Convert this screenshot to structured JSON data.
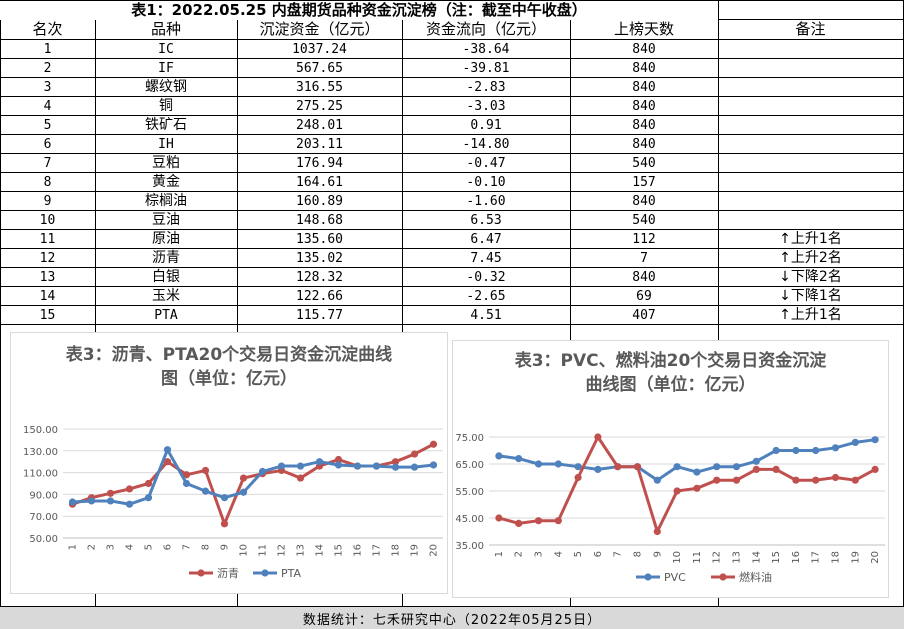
{
  "table": {
    "title": "表1：2022.05.25 内盘期货品种资金沉淀榜（注：截至中午收盘）",
    "headers": [
      "名次",
      "品种",
      "沉淀资金（亿元）",
      "资金流向（亿元）",
      "上榜天数",
      "备注"
    ],
    "rows": [
      {
        "rank": "1",
        "name": "IC",
        "amount": "1037.24",
        "flow": "-38.64",
        "days": "840",
        "note": ""
      },
      {
        "rank": "2",
        "name": "IF",
        "amount": "567.65",
        "flow": "-39.81",
        "days": "840",
        "note": ""
      },
      {
        "rank": "3",
        "name": "螺纹钢",
        "amount": "316.55",
        "flow": "-2.83",
        "days": "840",
        "note": ""
      },
      {
        "rank": "4",
        "name": "铜",
        "amount": "275.25",
        "flow": "-3.03",
        "days": "840",
        "note": ""
      },
      {
        "rank": "5",
        "name": "铁矿石",
        "amount": "248.01",
        "flow": "0.91",
        "days": "840",
        "note": ""
      },
      {
        "rank": "6",
        "name": "IH",
        "amount": "203.11",
        "flow": "-14.80",
        "days": "840",
        "note": ""
      },
      {
        "rank": "7",
        "name": "豆粕",
        "amount": "176.94",
        "flow": "-0.47",
        "days": "540",
        "note": ""
      },
      {
        "rank": "8",
        "name": "黄金",
        "amount": "164.61",
        "flow": "-0.10",
        "days": "157",
        "note": ""
      },
      {
        "rank": "9",
        "name": "棕榈油",
        "amount": "160.89",
        "flow": "-1.60",
        "days": "840",
        "note": ""
      },
      {
        "rank": "10",
        "name": "豆油",
        "amount": "148.68",
        "flow": "6.53",
        "days": "540",
        "note": ""
      },
      {
        "rank": "11",
        "name": "原油",
        "amount": "135.60",
        "flow": "6.47",
        "days": "112",
        "note": "↑上升1名"
      },
      {
        "rank": "12",
        "name": "沥青",
        "amount": "135.02",
        "flow": "7.45",
        "days": "7",
        "note": "↑上升2名"
      },
      {
        "rank": "13",
        "name": "白银",
        "amount": "128.32",
        "flow": "-0.32",
        "days": "840",
        "note": "↓下降2名"
      },
      {
        "rank": "14",
        "name": "玉米",
        "amount": "122.66",
        "flow": "-2.65",
        "days": "69",
        "note": "↓下降1名"
      },
      {
        "rank": "15",
        "name": "PTA",
        "amount": "115.77",
        "flow": "4.51",
        "days": "407",
        "note": "↑上升1名"
      }
    ]
  },
  "footer": "数据统计：七禾研究中心（2022年05月25日）",
  "colors": {
    "red": "#c0504d",
    "blue": "#4f81bd",
    "axis": "#595959",
    "grid": "#d9d9d9",
    "footer_bg": "#d9d9d9"
  },
  "chart_data": [
    {
      "type": "line",
      "title": "表3：沥青、PTA20个交易日资金沉淀曲线图（单位：亿元）",
      "title_lines": [
        "表3：沥青、PTA20个交易日资金沉淀曲线",
        "图（单位：亿元）"
      ],
      "x": [
        "1",
        "2",
        "3",
        "4",
        "5",
        "6",
        "7",
        "8",
        "9",
        "10",
        "11",
        "12",
        "13",
        "14",
        "15",
        "16",
        "17",
        "18",
        "19",
        "20"
      ],
      "yticks": [
        "50.00",
        "70.00",
        "90.00",
        "110.00",
        "130.00",
        "150.00"
      ],
      "ylim": [
        50,
        150
      ],
      "legend_position": "bottom",
      "series": [
        {
          "name": "沥青",
          "color": "#c0504d",
          "values": [
            81,
            87,
            91,
            95,
            100,
            120,
            108,
            112,
            63,
            105,
            109,
            112,
            105,
            116,
            122,
            116,
            116,
            120,
            127,
            136
          ]
        },
        {
          "name": "PTA",
          "color": "#4f81bd",
          "values": [
            83,
            84,
            84,
            81,
            87,
            131,
            100,
            93,
            87,
            92,
            111,
            116,
            116,
            120,
            117,
            116,
            116,
            115,
            115,
            117
          ]
        }
      ]
    },
    {
      "type": "line",
      "title": "表3：PVC、燃料油20个交易日资金沉淀曲线图（单位：亿元）",
      "title_lines": [
        "表3：PVC、燃料油20个交易日资金沉淀",
        "曲线图（单位：亿元）"
      ],
      "x": [
        "1",
        "2",
        "3",
        "4",
        "5",
        "6",
        "7",
        "8",
        "9",
        "10",
        "11",
        "12",
        "13",
        "14",
        "15",
        "16",
        "17",
        "18",
        "19",
        "20"
      ],
      "yticks": [
        "35.00",
        "45.00",
        "55.00",
        "65.00",
        "75.00"
      ],
      "ylim": [
        35,
        75
      ],
      "legend_position": "bottom",
      "series": [
        {
          "name": "PVC",
          "color": "#4f81bd",
          "values": [
            68,
            67,
            65,
            65,
            64,
            63,
            64,
            64,
            59,
            64,
            62,
            64,
            64,
            66,
            70,
            70,
            70,
            71,
            73,
            74
          ]
        },
        {
          "name": "燃料油",
          "color": "#c0504d",
          "values": [
            45,
            43,
            44,
            44,
            60,
            75,
            64,
            64,
            40,
            55,
            56,
            59,
            59,
            63,
            63,
            59,
            59,
            60,
            59,
            63
          ]
        }
      ]
    }
  ]
}
